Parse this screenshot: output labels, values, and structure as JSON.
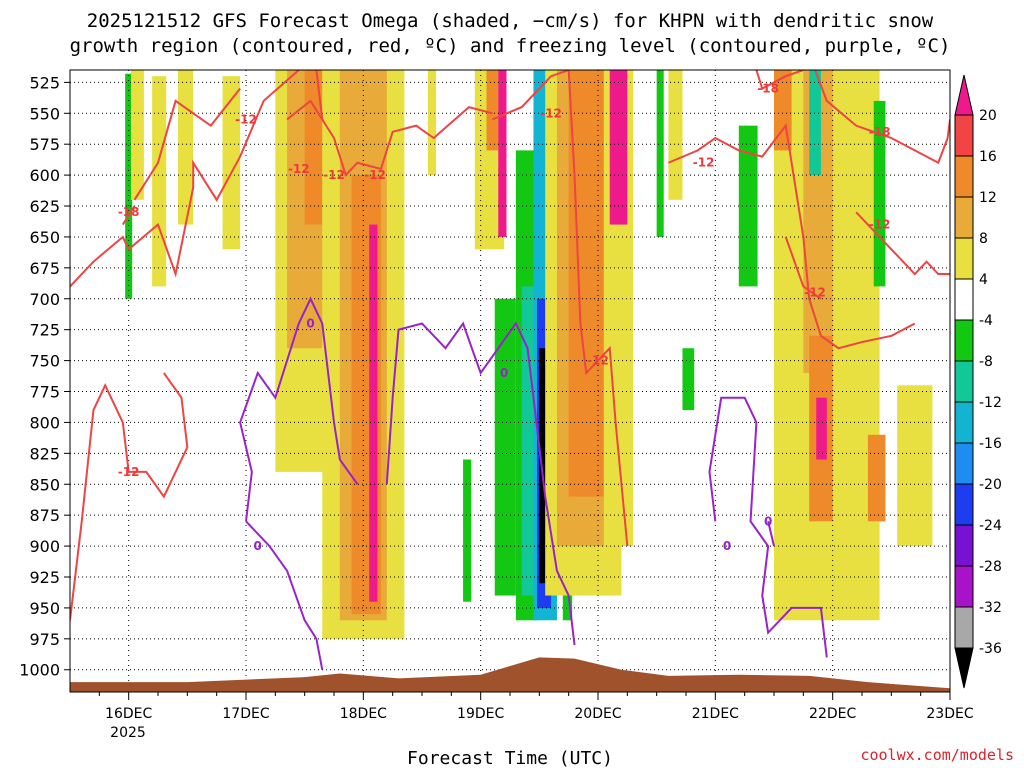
{
  "chart_data": {
    "type": "heatmap",
    "title_line1": "2025121512 GFS Forecast Omega (shaded, −cm/s) for KHPN with dendritic snow",
    "title_line2": "growth region (contoured, red, ºC) and freezing level (contoured, purple, ºC)",
    "xlabel": "Forecast Time (UTC)",
    "credit": "coolwx.com/models",
    "x_ticks": [
      "16DEC",
      "17DEC",
      "18DEC",
      "19DEC",
      "20DEC",
      "21DEC",
      "22DEC",
      "23DEC"
    ],
    "x_year_label": "2025",
    "x_range_days": [
      15.5,
      23.0
    ],
    "y_ticks": [
      525,
      550,
      575,
      600,
      625,
      650,
      675,
      700,
      725,
      750,
      775,
      800,
      825,
      850,
      875,
      900,
      925,
      950,
      975,
      1000
    ],
    "y_range_hpa": [
      515,
      1018
    ],
    "colorbar": {
      "labels": [
        "20",
        "16",
        "12",
        "8",
        "4",
        "-4",
        "-8",
        "-12",
        "-16",
        "-20",
        "-24",
        "-28",
        "-32",
        "-36"
      ],
      "bins": [
        {
          "range": [
            20,
            24
          ],
          "color": "#ee1a8c"
        },
        {
          "range": [
            16,
            20
          ],
          "color": "#f24444"
        },
        {
          "range": [
            12,
            16
          ],
          "color": "#ee8a2a"
        },
        {
          "range": [
            8,
            12
          ],
          "color": "#e8aa38"
        },
        {
          "range": [
            4,
            8
          ],
          "color": "#e8e040"
        },
        {
          "range": [
            -4,
            4
          ],
          "color": "#ffffff"
        },
        {
          "range": [
            -8,
            -4
          ],
          "color": "#12c812"
        },
        {
          "range": [
            -12,
            -8
          ],
          "color": "#12c896"
        },
        {
          "range": [
            -16,
            -12
          ],
          "color": "#12b4d2"
        },
        {
          "range": [
            -20,
            -16
          ],
          "color": "#1e8cf0"
        },
        {
          "range": [
            -24,
            -20
          ],
          "color": "#1e3cf0"
        },
        {
          "range": [
            -28,
            -24
          ],
          "color": "#7812d2"
        },
        {
          "range": [
            -32,
            -28
          ],
          "color": "#a812c8"
        },
        {
          "range": [
            -36,
            -32
          ],
          "color": "#a8a8a8"
        },
        {
          "range": [
            -40,
            -36
          ],
          "color": "#000000"
        }
      ]
    },
    "omega_features": [
      {
        "t0": 15.97,
        "t1": 16.03,
        "p0": 518,
        "p1": 700,
        "value": -6
      },
      {
        "t0": 16.02,
        "t1": 16.13,
        "p0": 515,
        "p1": 620,
        "value": 5
      },
      {
        "t0": 16.2,
        "t1": 16.32,
        "p0": 520,
        "p1": 690,
        "value": 6
      },
      {
        "t0": 16.42,
        "t1": 16.55,
        "p0": 515,
        "p1": 640,
        "value": 6
      },
      {
        "t0": 16.8,
        "t1": 16.95,
        "p0": 520,
        "p1": 660,
        "value": 6
      },
      {
        "t0": 17.25,
        "t1": 17.75,
        "p0": 515,
        "p1": 840,
        "value": 5
      },
      {
        "t0": 17.35,
        "t1": 17.7,
        "p0": 515,
        "p1": 740,
        "value": 10
      },
      {
        "t0": 17.5,
        "t1": 17.65,
        "p0": 515,
        "p1": 640,
        "value": 14
      },
      {
        "t0": 17.65,
        "t1": 18.35,
        "p0": 515,
        "p1": 975,
        "value": 6
      },
      {
        "t0": 17.8,
        "t1": 18.2,
        "p0": 515,
        "p1": 960,
        "value": 10
      },
      {
        "t0": 17.9,
        "t1": 18.15,
        "p0": 600,
        "p1": 955,
        "value": 14
      },
      {
        "t0": 18.05,
        "t1": 18.12,
        "p0": 640,
        "p1": 945,
        "value": 22
      },
      {
        "t0": 18.55,
        "t1": 18.62,
        "p0": 515,
        "p1": 600,
        "value": 6
      },
      {
        "t0": 18.95,
        "t1": 19.2,
        "p0": 515,
        "p1": 660,
        "value": 5
      },
      {
        "t0": 19.05,
        "t1": 19.15,
        "p0": 515,
        "p1": 580,
        "value": 14
      },
      {
        "t0": 19.15,
        "t1": 19.22,
        "p0": 515,
        "p1": 650,
        "value": 22
      },
      {
        "t0": 18.85,
        "t1": 18.92,
        "p0": 830,
        "p1": 945,
        "value": -6
      },
      {
        "t0": 19.12,
        "t1": 19.3,
        "p0": 700,
        "p1": 940,
        "value": -6
      },
      {
        "t0": 19.3,
        "t1": 19.48,
        "p0": 580,
        "p1": 960,
        "value": -8
      },
      {
        "t0": 19.35,
        "t1": 19.47,
        "p0": 690,
        "p1": 940,
        "value": -10
      },
      {
        "t0": 19.45,
        "t1": 19.65,
        "p0": 515,
        "p1": 960,
        "value": -14
      },
      {
        "t0": 19.48,
        "t1": 19.6,
        "p0": 700,
        "p1": 950,
        "value": -22
      },
      {
        "t0": 19.5,
        "t1": 19.58,
        "p0": 740,
        "p1": 930,
        "value": -39
      },
      {
        "t0": 19.6,
        "t1": 19.7,
        "p0": 515,
        "p1": 700,
        "value": -9
      },
      {
        "t0": 19.7,
        "t1": 19.78,
        "p0": 880,
        "p1": 960,
        "value": -6
      },
      {
        "t0": 19.55,
        "t1": 20.2,
        "p0": 515,
        "p1": 940,
        "value": 6
      },
      {
        "t0": 19.65,
        "t1": 20.1,
        "p0": 515,
        "p1": 900,
        "value": 10
      },
      {
        "t0": 19.75,
        "t1": 20.05,
        "p0": 515,
        "p1": 860,
        "value": 14
      },
      {
        "t0": 20.05,
        "t1": 20.3,
        "p0": 515,
        "p1": 900,
        "value": 6
      },
      {
        "t0": 20.1,
        "t1": 20.25,
        "p0": 515,
        "p1": 640,
        "value": 22
      },
      {
        "t0": 20.5,
        "t1": 20.56,
        "p0": 515,
        "p1": 650,
        "value": -6
      },
      {
        "t0": 20.6,
        "t1": 20.72,
        "p0": 515,
        "p1": 620,
        "value": 6
      },
      {
        "t0": 20.72,
        "t1": 20.82,
        "p0": 740,
        "p1": 790,
        "value": -6
      },
      {
        "t0": 21.2,
        "t1": 21.36,
        "p0": 560,
        "p1": 690,
        "value": -6
      },
      {
        "t0": 21.5,
        "t1": 22.4,
        "p0": 515,
        "p1": 960,
        "value": 5
      },
      {
        "t0": 21.5,
        "t1": 21.65,
        "p0": 515,
        "p1": 580,
        "value": 12
      },
      {
        "t0": 21.75,
        "t1": 22.0,
        "p0": 515,
        "p1": 760,
        "value": 10
      },
      {
        "t0": 21.8,
        "t1": 21.9,
        "p0": 515,
        "p1": 600,
        "value": -12
      },
      {
        "t0": 21.8,
        "t1": 22.0,
        "p0": 730,
        "p1": 880,
        "value": 14
      },
      {
        "t0": 21.86,
        "t1": 21.95,
        "p0": 780,
        "p1": 830,
        "value": 22
      },
      {
        "t0": 22.3,
        "t1": 22.45,
        "p0": 810,
        "p1": 880,
        "value": 14
      },
      {
        "t0": 22.35,
        "t1": 22.45,
        "p0": 540,
        "p1": 690,
        "value": -6
      },
      {
        "t0": 22.55,
        "t1": 22.85,
        "p0": 770,
        "p1": 900,
        "value": 5
      }
    ],
    "dgz_contours": [
      {
        "label": "-12",
        "label_at": [
          17.75,
          600
        ],
        "points": [
          [
            15.5,
            690
          ],
          [
            15.7,
            670
          ],
          [
            15.95,
            650
          ],
          [
            16.0,
            660
          ],
          [
            16.25,
            640
          ],
          [
            16.4,
            680
          ],
          [
            16.55,
            610
          ],
          [
            16.55,
            590
          ],
          [
            16.75,
            620
          ],
          [
            16.95,
            585
          ],
          [
            17.15,
            540
          ],
          [
            17.45,
            515
          ]
        ]
      },
      {
        "label": "-12",
        "label_at": [
          17.0,
          555
        ],
        "points": [
          [
            16.05,
            620
          ],
          [
            16.25,
            590
          ],
          [
            16.4,
            540
          ],
          [
            16.7,
            560
          ],
          [
            16.95,
            530
          ]
        ]
      },
      {
        "label": "-18",
        "label_at": [
          16.0,
          630
        ],
        "points": [
          [
            15.95,
            640
          ],
          [
            16.05,
            625
          ]
        ]
      },
      {
        "label": "-12",
        "label_at": [
          17.45,
          595
        ],
        "points": [
          [
            17.35,
            555
          ],
          [
            17.55,
            540
          ],
          [
            17.75,
            570
          ],
          [
            17.85,
            600
          ],
          [
            17.95,
            590
          ],
          [
            18.15,
            595
          ],
          [
            18.25,
            565
          ],
          [
            18.45,
            560
          ],
          [
            18.6,
            570
          ],
          [
            18.9,
            545
          ],
          [
            19.1,
            550
          ]
        ]
      },
      {
        "label": "-12",
        "label_at": [
          18.1,
          600
        ],
        "points": [
          [
            17.6,
            515
          ],
          [
            17.65,
            555
          ]
        ]
      },
      {
        "label": "-12",
        "label_at": [
          16.0,
          840
        ],
        "points": [
          [
            15.5,
            960
          ],
          [
            15.6,
            880
          ],
          [
            15.7,
            790
          ],
          [
            15.8,
            770
          ],
          [
            15.95,
            800
          ],
          [
            16.0,
            840
          ],
          [
            16.15,
            840
          ],
          [
            16.3,
            860
          ],
          [
            16.5,
            820
          ],
          [
            16.45,
            780
          ],
          [
            16.3,
            760
          ]
        ]
      },
      {
        "label": "-12",
        "label_at": [
          19.6,
          550
        ],
        "points": [
          [
            19.1,
            555
          ],
          [
            19.35,
            545
          ],
          [
            19.6,
            520
          ],
          [
            19.75,
            515
          ]
        ]
      },
      {
        "label": "-12",
        "label_at": [
          20.0,
          750
        ],
        "points": [
          [
            19.75,
            515
          ],
          [
            19.8,
            600
          ],
          [
            19.85,
            720
          ],
          [
            19.9,
            760
          ],
          [
            20.1,
            740
          ],
          [
            20.15,
            800
          ],
          [
            20.2,
            850
          ],
          [
            20.25,
            900
          ]
        ]
      },
      {
        "label": "-12",
        "label_at": [
          20.9,
          590
        ],
        "points": [
          [
            20.6,
            590
          ],
          [
            20.85,
            580
          ],
          [
            21.0,
            570
          ],
          [
            21.2,
            580
          ],
          [
            21.4,
            585
          ],
          [
            21.6,
            560
          ],
          [
            21.7,
            620
          ],
          [
            21.75,
            650
          ],
          [
            21.8,
            700
          ],
          [
            21.9,
            730
          ],
          [
            22.05,
            740
          ],
          [
            22.25,
            735
          ],
          [
            22.5,
            730
          ],
          [
            22.7,
            720
          ]
        ]
      },
      {
        "label": "-12",
        "label_at": [
          21.85,
          695
        ],
        "points": [
          [
            21.6,
            650
          ],
          [
            21.75,
            690
          ],
          [
            21.9,
            700
          ]
        ]
      },
      {
        "label": "-18",
        "label_at": [
          21.45,
          530
        ],
        "points": [
          [
            21.35,
            515
          ],
          [
            21.4,
            530
          ],
          [
            21.6,
            520
          ],
          [
            21.75,
            515
          ]
        ]
      },
      {
        "label": "-18",
        "label_at": [
          22.4,
          565
        ],
        "points": [
          [
            21.85,
            515
          ],
          [
            21.95,
            540
          ],
          [
            22.2,
            560
          ],
          [
            22.5,
            570
          ],
          [
            22.7,
            580
          ],
          [
            22.9,
            590
          ],
          [
            22.98,
            570
          ],
          [
            23.0,
            555
          ]
        ]
      },
      {
        "label": "-12",
        "label_at": [
          22.4,
          640
        ],
        "points": [
          [
            22.2,
            630
          ],
          [
            22.4,
            650
          ],
          [
            22.55,
            665
          ],
          [
            22.7,
            680
          ],
          [
            22.8,
            670
          ],
          [
            22.9,
            680
          ],
          [
            23.0,
            680
          ]
        ]
      }
    ],
    "freezing_contours": [
      {
        "label": "0",
        "label_at": [
          17.55,
          720
        ],
        "points": [
          [
            17.0,
            880
          ],
          [
            17.05,
            840
          ],
          [
            16.95,
            800
          ],
          [
            17.1,
            760
          ],
          [
            17.25,
            780
          ],
          [
            17.35,
            750
          ],
          [
            17.45,
            720
          ],
          [
            17.55,
            700
          ],
          [
            17.65,
            720
          ],
          [
            17.7,
            760
          ],
          [
            17.75,
            800
          ],
          [
            17.8,
            830
          ],
          [
            17.95,
            850
          ]
        ]
      },
      {
        "label": "0",
        "label_at": [
          17.1,
          900
        ],
        "points": [
          [
            17.0,
            880
          ],
          [
            17.2,
            900
          ],
          [
            17.35,
            920
          ],
          [
            17.5,
            960
          ],
          [
            17.6,
            975
          ],
          [
            17.65,
            1000
          ]
        ]
      },
      {
        "label": "0",
        "label_at": [
          19.2,
          760
        ],
        "points": [
          [
            18.2,
            850
          ],
          [
            18.25,
            780
          ],
          [
            18.3,
            725
          ],
          [
            18.5,
            720
          ],
          [
            18.7,
            740
          ],
          [
            18.85,
            720
          ],
          [
            19.0,
            760
          ],
          [
            19.15,
            740
          ],
          [
            19.3,
            720
          ],
          [
            19.4,
            740
          ],
          [
            19.55,
            860
          ],
          [
            19.65,
            920
          ],
          [
            19.75,
            940
          ],
          [
            19.8,
            980
          ]
        ]
      },
      {
        "label": "0",
        "label_at": [
          21.1,
          900
        ],
        "points": [
          [
            21.0,
            880
          ],
          [
            20.95,
            840
          ],
          [
            21.05,
            780
          ],
          [
            21.25,
            780
          ],
          [
            21.35,
            800
          ],
          [
            21.3,
            880
          ],
          [
            21.45,
            900
          ],
          [
            21.4,
            940
          ],
          [
            21.45,
            970
          ],
          [
            21.65,
            950
          ],
          [
            21.9,
            950
          ],
          [
            21.95,
            990
          ]
        ]
      },
      {
        "label": "0",
        "label_at": [
          21.45,
          880
        ],
        "points": [
          [
            21.45,
            880
          ],
          [
            21.5,
            900
          ]
        ]
      }
    ],
    "terrain": [
      {
        "t": 15.5,
        "p": 1010
      },
      {
        "t": 16.5,
        "p": 1010
      },
      {
        "t": 17.5,
        "p": 1006
      },
      {
        "t": 17.8,
        "p": 1003
      },
      {
        "t": 18.3,
        "p": 1007
      },
      {
        "t": 19.0,
        "p": 1004
      },
      {
        "t": 19.5,
        "p": 990
      },
      {
        "t": 19.8,
        "p": 991
      },
      {
        "t": 20.2,
        "p": 1000
      },
      {
        "t": 20.6,
        "p": 1005
      },
      {
        "t": 21.2,
        "p": 1004
      },
      {
        "t": 21.8,
        "p": 1005
      },
      {
        "t": 22.3,
        "p": 1010
      },
      {
        "t": 23.0,
        "p": 1015
      }
    ]
  }
}
